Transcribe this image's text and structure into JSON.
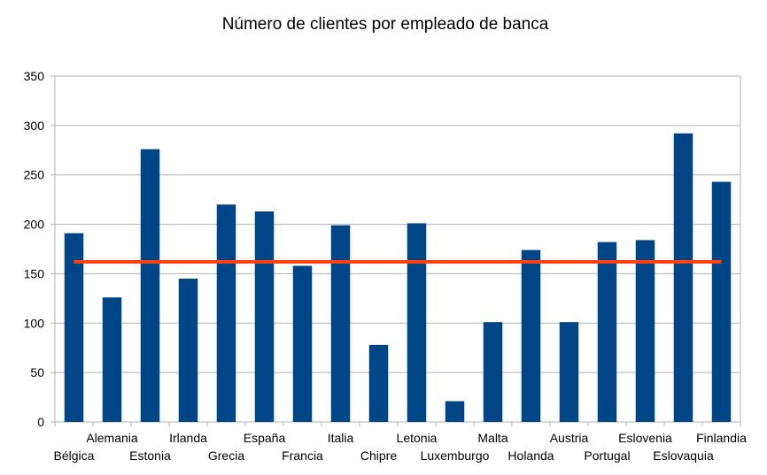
{
  "chart_data": {
    "type": "bar",
    "title": "Número de clientes por empleado de banca",
    "xlabel": "",
    "ylabel": "",
    "ylim": [
      0,
      350
    ],
    "yticks": [
      "0",
      "50",
      "100",
      "150",
      "200",
      "250",
      "300",
      "350"
    ],
    "grid": "horizontal",
    "legend": "none",
    "categories": [
      "Bélgica",
      "Alemania",
      "Estonia",
      "Irlanda",
      "Grecia",
      "España",
      "Francia",
      "Italia",
      "Chipre",
      "Letonia",
      "Luxemburgo",
      "Malta",
      "Holanda",
      "Austria",
      "Portugal",
      "Eslovenia",
      "Eslovaquia",
      "Finlandia"
    ],
    "series": [
      {
        "type": "bar",
        "color": "#004586",
        "values": [
          191,
          126,
          276,
          145,
          220,
          213,
          158,
          199,
          78,
          201,
          21,
          101,
          174,
          101,
          182,
          184,
          292,
          243
        ]
      },
      {
        "type": "line",
        "color": "#ff420e",
        "values": [
          162,
          162,
          162,
          162,
          162,
          162,
          162,
          162,
          162,
          162,
          162,
          162,
          162,
          162,
          162,
          162,
          162,
          162
        ]
      }
    ]
  }
}
